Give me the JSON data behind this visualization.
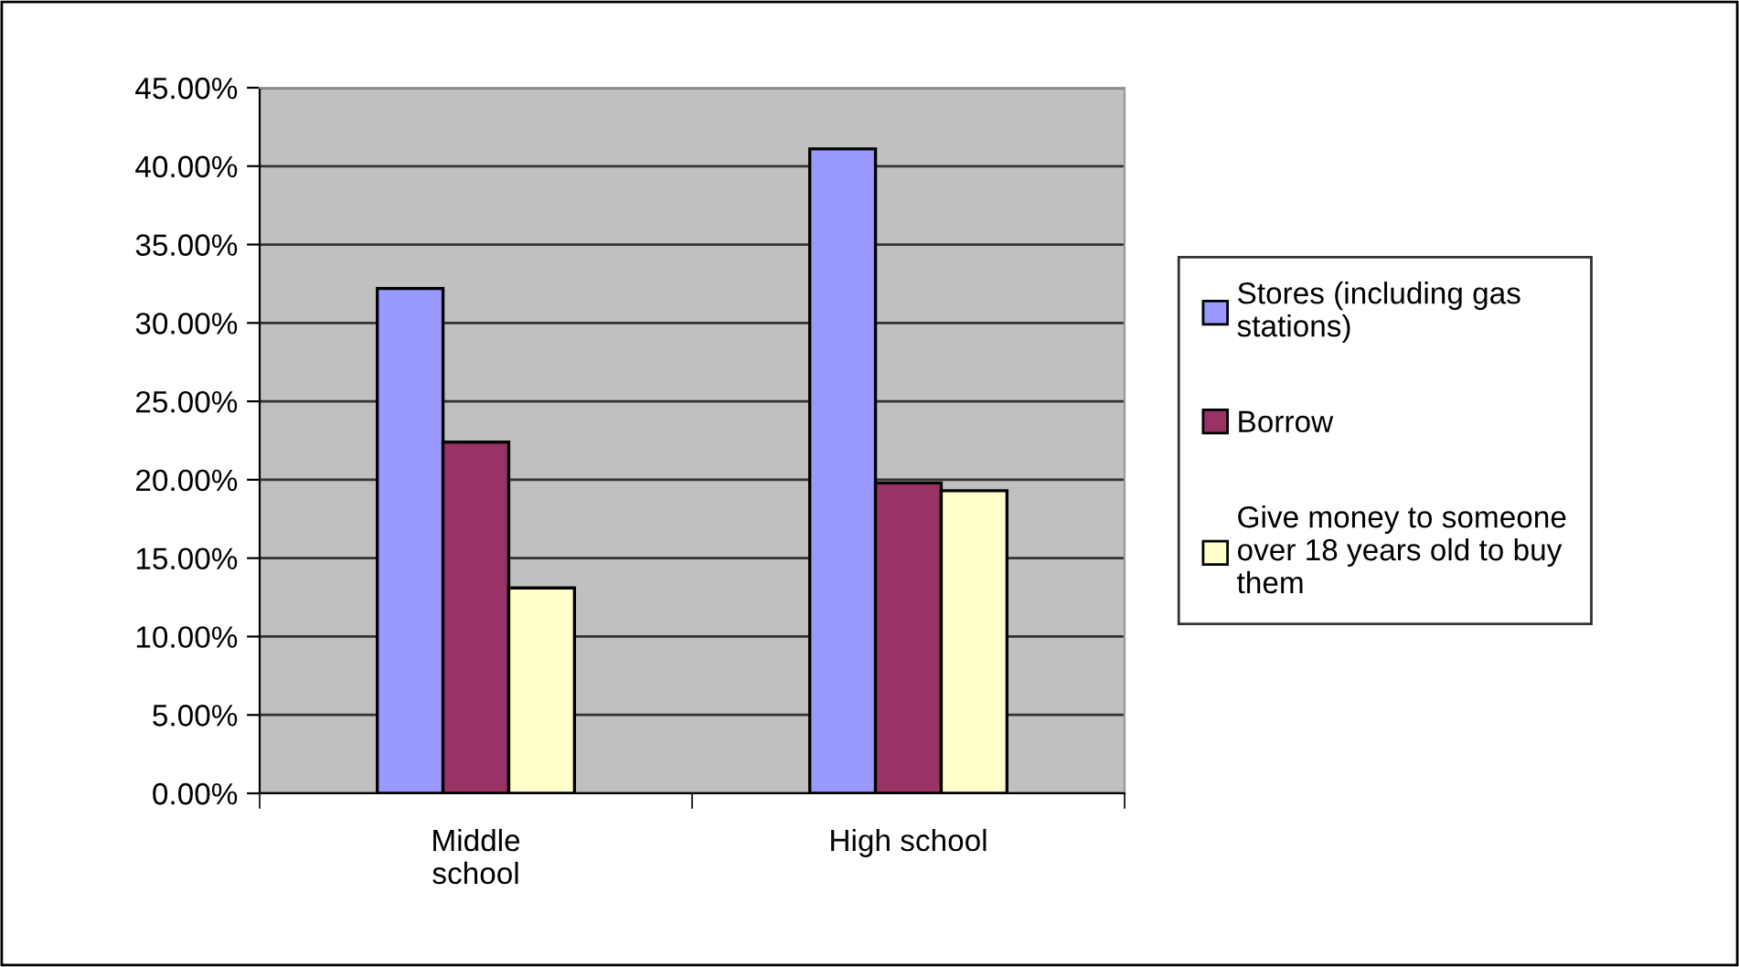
{
  "chart_data": {
    "type": "bar",
    "categories": [
      "Middle school",
      "High school"
    ],
    "series": [
      {
        "name": "Stores (including gas stations)",
        "color": "#9999ff",
        "values": [
          32.2,
          41.1
        ]
      },
      {
        "name": "Borrow",
        "color": "#993366",
        "values": [
          22.4,
          19.8
        ]
      },
      {
        "name": "Give money to someone over 18 years old to buy them",
        "color": "#ffffcc",
        "values": [
          13.1,
          19.3
        ]
      }
    ],
    "ylim": [
      0,
      45
    ],
    "yticks": [
      {
        "value": 0,
        "label": "0.00%"
      },
      {
        "value": 5,
        "label": "5.00%"
      },
      {
        "value": 10,
        "label": "10.00%"
      },
      {
        "value": 15,
        "label": "15.00%"
      },
      {
        "value": 20,
        "label": "20.00%"
      },
      {
        "value": 25,
        "label": "25.00%"
      },
      {
        "value": 30,
        "label": "30.00%"
      },
      {
        "value": 35,
        "label": "35.00%"
      },
      {
        "value": 40,
        "label": "40.00%"
      },
      {
        "value": 45,
        "label": "45.00%"
      }
    ],
    "grid": "y",
    "legend": "right"
  }
}
